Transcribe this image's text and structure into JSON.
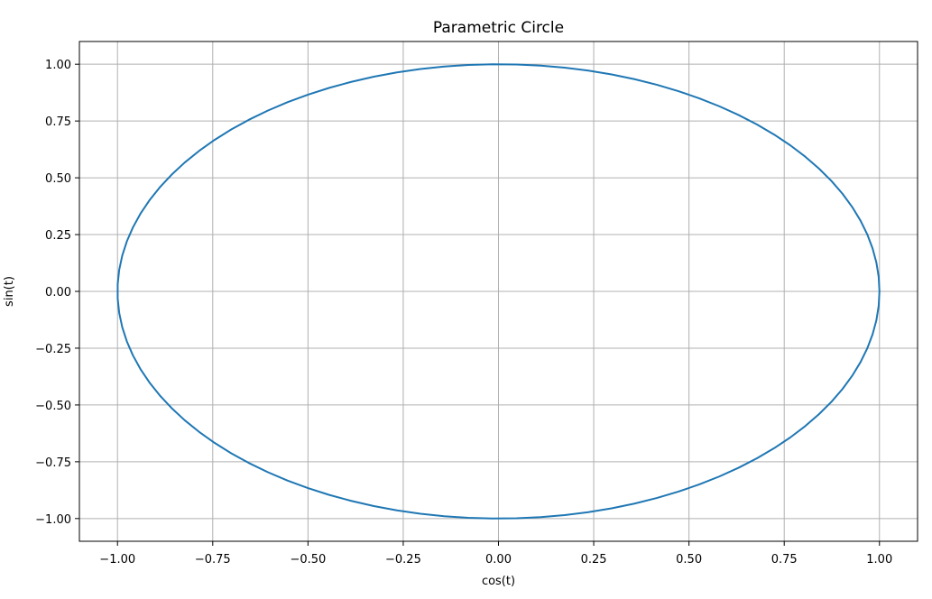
{
  "chart_data": {
    "type": "line",
    "title": "Parametric Circle",
    "xlabel": "cos(t)",
    "ylabel": "sin(t)",
    "xlim": [
      -1.1,
      1.1
    ],
    "ylim": [
      -1.1,
      1.1
    ],
    "grid": true,
    "x_ticks": [
      -1.0,
      -0.75,
      -0.5,
      -0.25,
      0.0,
      0.25,
      0.5,
      0.75,
      1.0
    ],
    "y_ticks": [
      -1.0,
      -0.75,
      -0.5,
      -0.25,
      0.0,
      0.25,
      0.5,
      0.75,
      1.0
    ],
    "x_tick_labels": [
      "−1.00",
      "−0.75",
      "−0.50",
      "−0.25",
      "0.00",
      "0.25",
      "0.50",
      "0.75",
      "1.00"
    ],
    "y_tick_labels": [
      "−1.00",
      "−0.75",
      "−0.50",
      "−0.25",
      "0.00",
      "0.25",
      "0.50",
      "0.75",
      "1.00"
    ],
    "series": [
      {
        "color": "#1f77b4",
        "parametric": {
          "x": "cos(t)",
          "y": "sin(t)",
          "t_range": [
            0,
            6.283185307179586
          ],
          "samples": 100
        }
      }
    ]
  }
}
